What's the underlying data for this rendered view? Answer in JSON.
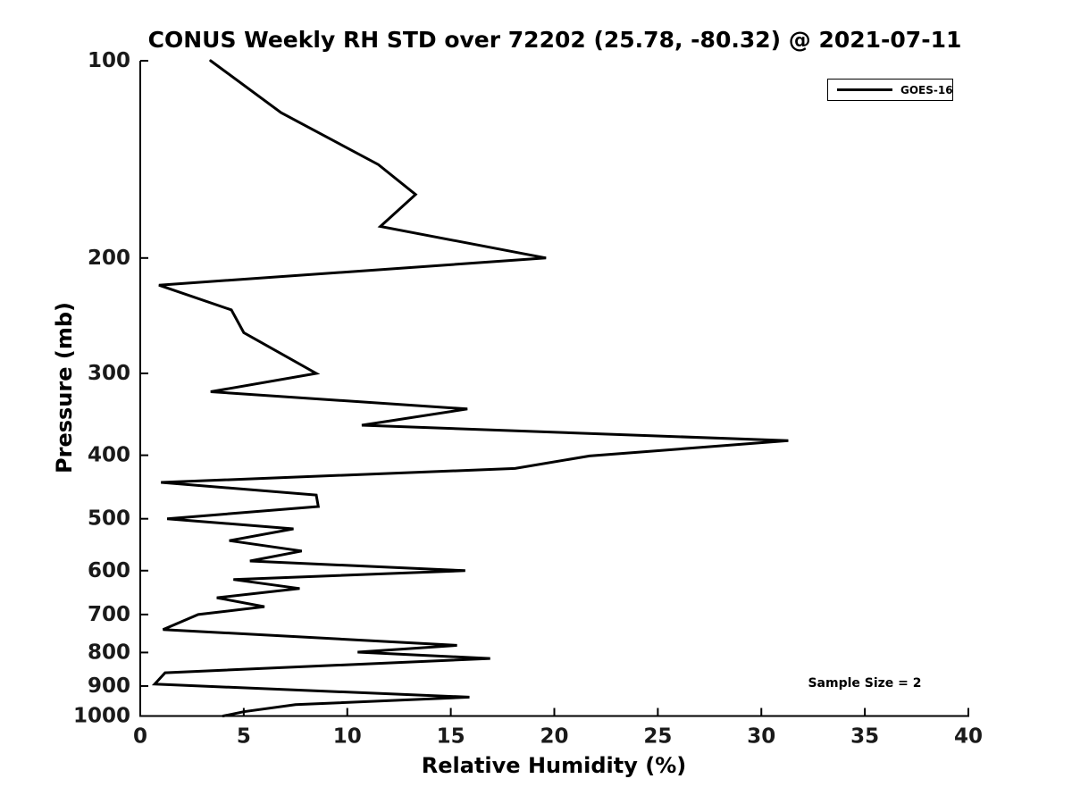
{
  "figure": {
    "background_color": "#ffffff",
    "line_color": "#000000",
    "tick_label_color": "#1a1a1a"
  },
  "chart_data": {
    "type": "line",
    "title": "CONUS Weekly RH STD over 72202 (25.78, -80.32) @ 2021-07-11",
    "xlabel": "Relative Humidity (%)",
    "ylabel": "Pressure (mb)",
    "xlim": [
      0,
      40
    ],
    "x_ticks": [
      0,
      5,
      10,
      15,
      20,
      25,
      30,
      35,
      40
    ],
    "ylim": [
      100,
      1000
    ],
    "y_ticks": [
      100,
      200,
      300,
      400,
      500,
      600,
      700,
      800,
      900,
      1000
    ],
    "y_scale": "log",
    "y_inverted": true,
    "grid": false,
    "legend": {
      "position": "upper right",
      "entries": [
        {
          "label": "GOES-16",
          "color": "#000000",
          "style": "solid"
        }
      ]
    },
    "annotation": "Sample Size = 2",
    "series": [
      {
        "name": "GOES-16",
        "pressure_mb": [
          100,
          120,
          144,
          160,
          179,
          200,
          220,
          240,
          260,
          300,
          320,
          340,
          360,
          380,
          401,
          419,
          440,
          460,
          479,
          500,
          518,
          540,
          560,
          580,
          600,
          619,
          639,
          660,
          681,
          700,
          738,
          780,
          799,
          817,
          859,
          894,
          936,
          961,
          985,
          1000
        ],
        "rh_std_percent": [
          3.4,
          6.8,
          11.5,
          13.3,
          11.6,
          19.6,
          0.9,
          4.4,
          5.0,
          8.5,
          3.4,
          15.8,
          10.7,
          31.3,
          21.7,
          18.1,
          1.0,
          8.5,
          8.6,
          1.3,
          7.4,
          4.3,
          7.8,
          5.3,
          15.7,
          4.5,
          7.7,
          3.7,
          6.0,
          2.8,
          1.1,
          15.3,
          10.5,
          16.9,
          1.2,
          0.7,
          15.9,
          7.5,
          5.0,
          4.0
        ]
      }
    ]
  }
}
